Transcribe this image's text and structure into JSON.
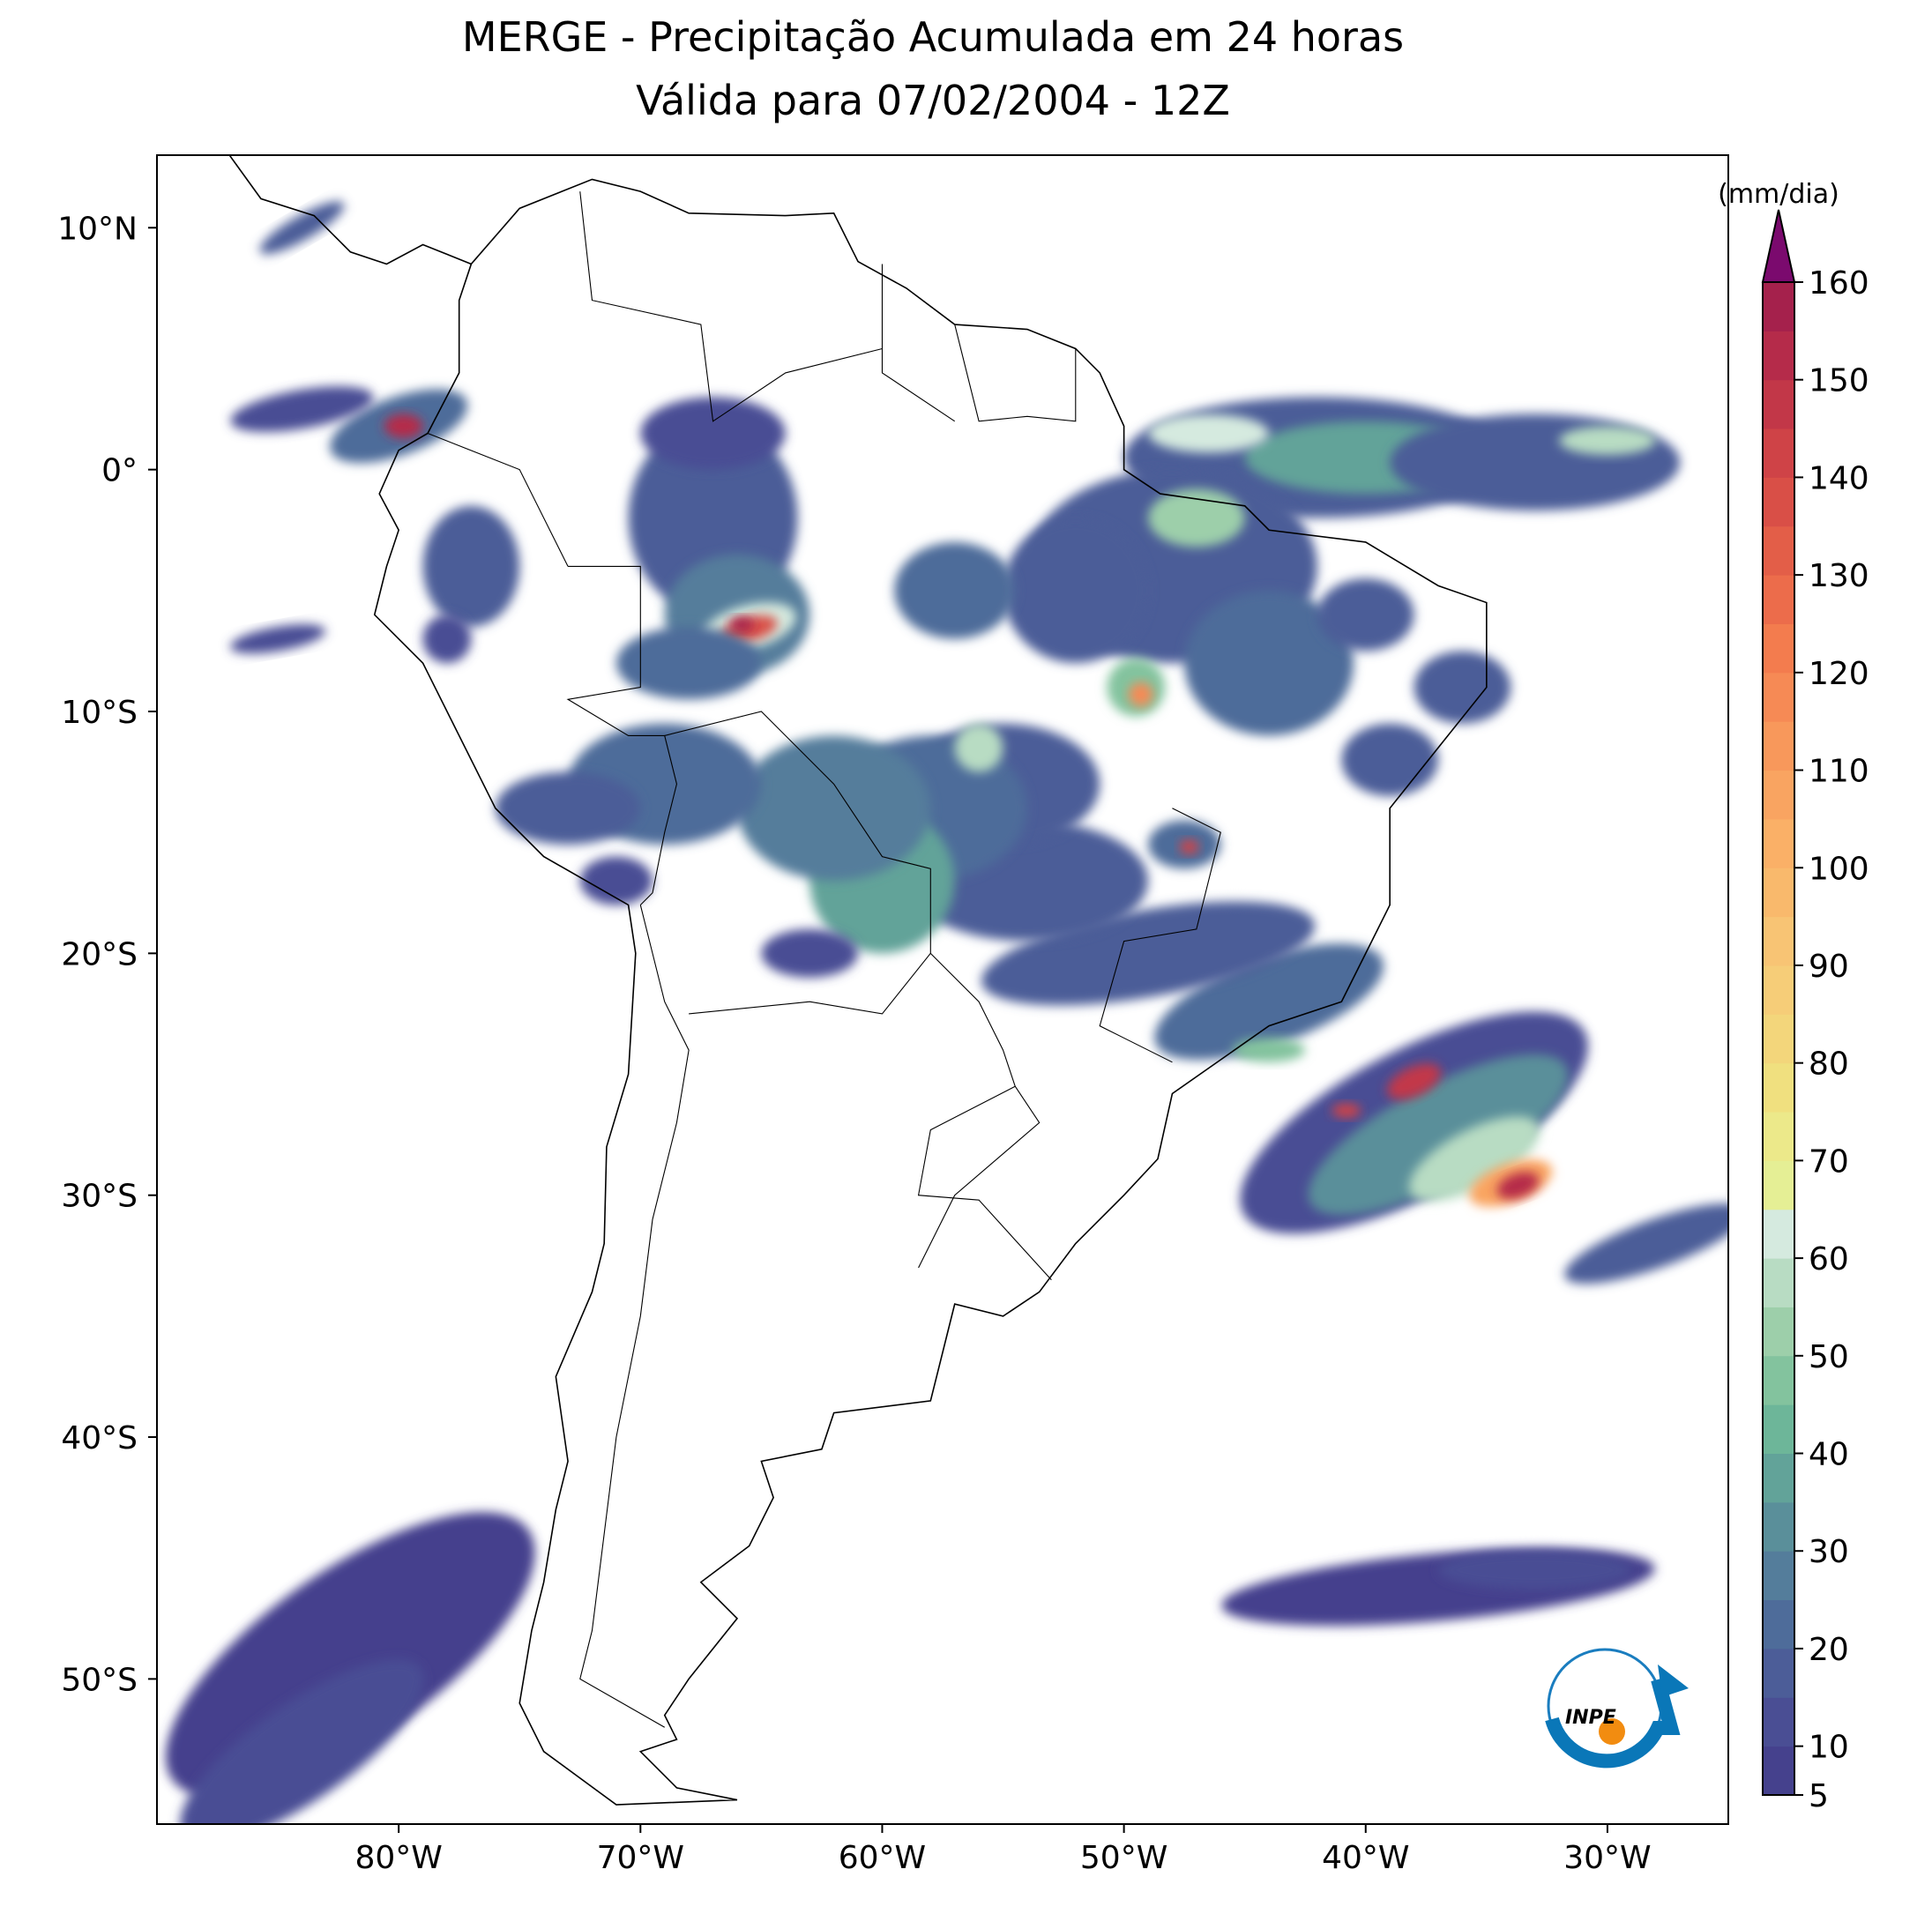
{
  "chart_data": {
    "type": "map",
    "title": "MERGE - Precipitação Acumulada em 24 horas",
    "subtitle": "Válida para 07/02/2004 - 12Z",
    "xlim": [
      -90,
      -25
    ],
    "ylim": [
      -56,
      13
    ],
    "xticks": [
      {
        "value": -80,
        "label": "80°W"
      },
      {
        "value": -70,
        "label": "70°W"
      },
      {
        "value": -60,
        "label": "60°W"
      },
      {
        "value": -50,
        "label": "50°W"
      },
      {
        "value": -40,
        "label": "40°W"
      },
      {
        "value": -30,
        "label": "30°W"
      }
    ],
    "yticks": [
      {
        "value": 10,
        "label": "10°N"
      },
      {
        "value": 0,
        "label": "0°"
      },
      {
        "value": -10,
        "label": "10°S"
      },
      {
        "value": -20,
        "label": "20°S"
      },
      {
        "value": -30,
        "label": "30°S"
      },
      {
        "value": -40,
        "label": "40°S"
      },
      {
        "value": -50,
        "label": "50°S"
      }
    ],
    "colorbar": {
      "label": "(mm/dia)",
      "lim": [
        5,
        160
      ],
      "ticks": [
        5,
        10,
        20,
        30,
        40,
        50,
        60,
        70,
        80,
        90,
        100,
        110,
        120,
        130,
        140,
        150,
        160
      ],
      "colors": [
        "#45418d",
        "#4a4e94",
        "#4c5d98",
        "#4e6c9a",
        "#547d9b",
        "#5a8f9a",
        "#62a399",
        "#6db699",
        "#83c39e",
        "#9dcfaa",
        "#b8dcc3",
        "#d5eadf",
        "#e5ef95",
        "#ece98a",
        "#f0e07f",
        "#f3d67b",
        "#f6cd78",
        "#f8c474",
        "#f9b96c",
        "#fab067",
        "#f9a461",
        "#f8985b",
        "#f68a55",
        "#f37c4e",
        "#ec6c4b",
        "#e35e48",
        "#d94f47",
        "#cf4347",
        "#c23748",
        "#b52b4a",
        "#a5214c"
      ],
      "extend_color": "#7b0a6e"
    },
    "logo": "INPE"
  }
}
